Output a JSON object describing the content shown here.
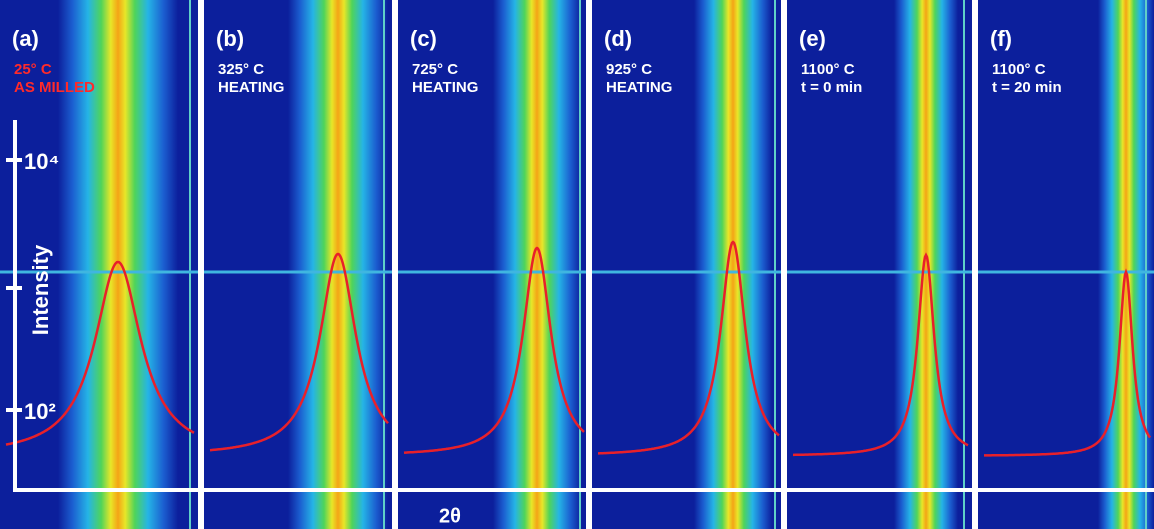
{
  "panels": [
    {
      "label": "(a)",
      "lines": [
        "25° C",
        "AS MILLED"
      ]
    },
    {
      "label": "(b)",
      "lines": [
        "325° C",
        "HEATING"
      ]
    },
    {
      "label": "(c)",
      "lines": [
        "725° C",
        "HEATING"
      ]
    },
    {
      "label": "(d)",
      "lines": [
        "925° C",
        "HEATING"
      ]
    },
    {
      "label": "(e)",
      "lines": [
        "1100° C",
        "t = 0 min"
      ]
    },
    {
      "label": "(f)",
      "lines": [
        "1100° C",
        "t = 20 min"
      ]
    }
  ],
  "axes": {
    "y_label": "Intensity",
    "y_ticks": [
      "10⁴",
      "10²"
    ],
    "x_label": "2θ"
  }
}
